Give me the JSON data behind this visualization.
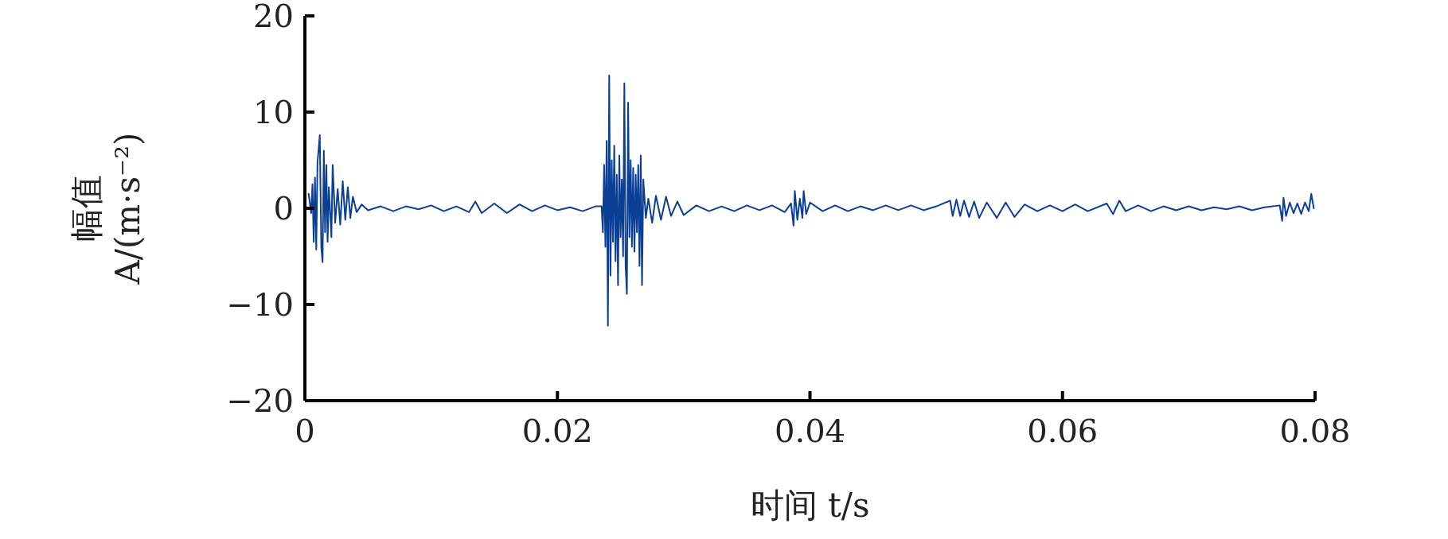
{
  "chart_data": {
    "type": "line",
    "xlabel": "时间 t/s",
    "ylabel": "幅值\nA/(m·s⁻²)",
    "xlim": [
      0,
      0.08
    ],
    "ylim": [
      -20,
      20
    ],
    "xticks": [
      0,
      0.02,
      0.04,
      0.06,
      0.08
    ],
    "yticks": [
      {
        "value": -20,
        "label": "−20"
      },
      {
        "value": -10,
        "label": "−10"
      },
      0,
      10,
      20
    ],
    "x": [
      0.0003,
      0.0005,
      0.0006,
      0.0007,
      0.0008,
      0.0009,
      0.001,
      0.00118,
      0.0013,
      0.0014,
      0.0015,
      0.0016,
      0.0017,
      0.0018,
      0.0019,
      0.0021,
      0.0022,
      0.0024,
      0.0026,
      0.0028,
      0.003,
      0.0032,
      0.0034,
      0.0036,
      0.0038,
      0.0041,
      0.0045,
      0.005,
      0.006,
      0.007,
      0.008,
      0.009,
      0.01,
      0.011,
      0.012,
      0.013,
      0.0135,
      0.014,
      0.015,
      0.016,
      0.017,
      0.018,
      0.019,
      0.02,
      0.021,
      0.022,
      0.023,
      0.0235,
      0.0236,
      0.0237,
      0.0238,
      0.0239,
      0.024,
      0.0241,
      0.0242,
      0.0243,
      0.0244,
      0.0245,
      0.0246,
      0.0247,
      0.0248,
      0.0249,
      0.025,
      0.0251,
      0.0252,
      0.0253,
      0.0254,
      0.0255,
      0.0256,
      0.0257,
      0.0258,
      0.0259,
      0.026,
      0.0261,
      0.0262,
      0.0263,
      0.0264,
      0.0265,
      0.0266,
      0.0267,
      0.0268,
      0.027,
      0.0272,
      0.0275,
      0.0278,
      0.0282,
      0.0286,
      0.029,
      0.0295,
      0.03,
      0.031,
      0.032,
      0.033,
      0.034,
      0.035,
      0.036,
      0.037,
      0.038,
      0.0385,
      0.0387,
      0.0388,
      0.039,
      0.0392,
      0.0394,
      0.0395,
      0.0397,
      0.04,
      0.041,
      0.042,
      0.043,
      0.044,
      0.045,
      0.046,
      0.047,
      0.048,
      0.049,
      0.05,
      0.0511,
      0.0513,
      0.0516,
      0.0519,
      0.0522,
      0.0526,
      0.053,
      0.0534,
      0.054,
      0.0548,
      0.0555,
      0.0562,
      0.057,
      0.058,
      0.059,
      0.06,
      0.061,
      0.062,
      0.0635,
      0.064,
      0.0645,
      0.065,
      0.066,
      0.067,
      0.068,
      0.069,
      0.07,
      0.071,
      0.072,
      0.073,
      0.074,
      0.075,
      0.076,
      0.0772,
      0.0774,
      0.0775,
      0.0777,
      0.078,
      0.0783,
      0.0786,
      0.0789,
      0.0792,
      0.0795,
      0.0797,
      0.0799
    ],
    "series": [
      {
        "color": "#0b3f96",
        "values": [
          1.5,
          -0.5,
          2.5,
          -3.5,
          3.2,
          -4.3,
          4.8,
          7.6,
          -4.0,
          -5.6,
          6.0,
          -2.5,
          4.5,
          -3.5,
          2.2,
          -3.0,
          4.5,
          -1.5,
          2.0,
          -1.7,
          2.8,
          -1.2,
          2.2,
          -1.0,
          1.2,
          -0.4,
          0.4,
          -0.2,
          0.2,
          -0.3,
          0.2,
          -0.1,
          0.3,
          -0.3,
          0.2,
          -0.4,
          0.7,
          -0.5,
          0.5,
          -0.5,
          0.4,
          -0.3,
          0.3,
          -0.2,
          0.1,
          -0.3,
          0.2,
          0.2,
          -2.5,
          4.5,
          -4.0,
          7.0,
          -12.2,
          13.8,
          -7.0,
          5.0,
          -3.5,
          6.5,
          -5.5,
          3.5,
          -8.0,
          5.5,
          -3.0,
          3.0,
          -5.0,
          13.0,
          -6.0,
          -8.9,
          11.0,
          -3.0,
          5.0,
          -4.0,
          4.2,
          -4.5,
          3.5,
          -2.5,
          4.5,
          -6.0,
          5.5,
          -8.0,
          3.0,
          -1.0,
          1.0,
          -1.5,
          1.3,
          -1.2,
          1.2,
          -0.8,
          0.7,
          -0.7,
          0.3,
          -0.3,
          0.2,
          -0.3,
          0.3,
          -0.2,
          0.3,
          -0.4,
          0.5,
          -1.8,
          1.8,
          -1.2,
          1.0,
          -1.0,
          1.8,
          -0.6,
          0.6,
          -0.3,
          0.3,
          -0.3,
          0.2,
          -0.2,
          0.3,
          -0.2,
          0.3,
          -0.2,
          0.2,
          0.8,
          -0.8,
          0.9,
          -0.8,
          0.8,
          -0.9,
          0.7,
          -1.0,
          0.6,
          -1.0,
          0.6,
          -0.9,
          0.4,
          -0.3,
          0.3,
          -0.3,
          0.4,
          -0.3,
          0.5,
          -0.6,
          0.8,
          -0.3,
          0.3,
          -0.3,
          0.2,
          -0.2,
          0.2,
          -0.2,
          0.1,
          -0.1,
          0.2,
          -0.2,
          0.1,
          0.3,
          -1.3,
          1.1,
          -0.8,
          0.6,
          -0.5,
          0.5,
          -0.6,
          0.6,
          -0.3,
          1.5,
          0.0
        ]
      }
    ]
  }
}
